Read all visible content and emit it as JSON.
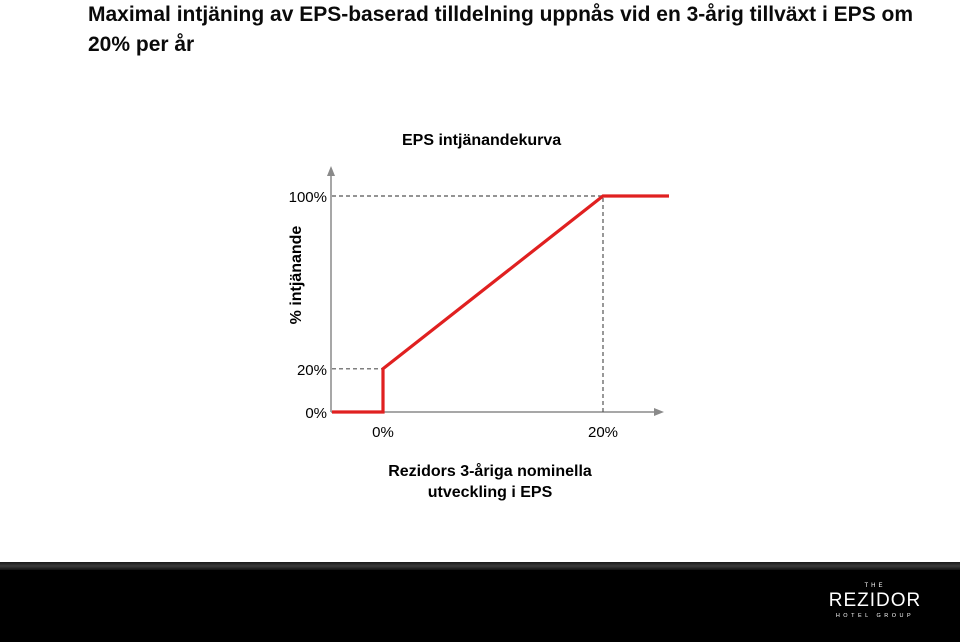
{
  "slide": {
    "title": "Maximal intjäning av EPS-baserad tilldelning uppnås vid en 3-årig tillväxt i EPS om 20% per år"
  },
  "chart_data": {
    "type": "line",
    "title": "EPS intjänandekurva",
    "xlabel": "Rezidors 3-åriga nominella utveckling i EPS",
    "ylabel": "% intjänande",
    "xlim": [
      -0.05,
      0.32
    ],
    "ylim": [
      0,
      1.0
    ],
    "x_tick_labels": [
      {
        "value": 0,
        "label": "0%"
      },
      {
        "value": 0.2,
        "label": "20%"
      }
    ],
    "y_tick_labels": [
      {
        "value": 0,
        "label": "0%"
      },
      {
        "value": 0.2,
        "label": "20%"
      },
      {
        "value": 1.0,
        "label": "100%"
      }
    ],
    "series": [
      {
        "color": "#e02020",
        "x": [
          -0.05,
          0,
          0,
          0.2,
          0.26
        ],
        "y": [
          0,
          0,
          0.2,
          1.0,
          1.0
        ]
      }
    ],
    "reference_lines": [
      {
        "kind": "horizontal",
        "y": 0.2,
        "from_x": -0.05,
        "to_x": 0
      },
      {
        "kind": "horizontal",
        "y": 1.0,
        "from_x": -0.05,
        "to_x": 0.2
      },
      {
        "kind": "vertical",
        "x": 0.2,
        "from_y": 0,
        "to_y": 1.0
      }
    ],
    "grid": false,
    "legend": "none"
  },
  "footer": {
    "logo_top": "THE",
    "logo_main": "REZIDOR",
    "logo_sub": "HOTEL GROUP"
  },
  "colors": {
    "curve": "#e02020",
    "axis": "#8a8a8a",
    "reference": "#555555",
    "footer_bg": "#000000"
  }
}
